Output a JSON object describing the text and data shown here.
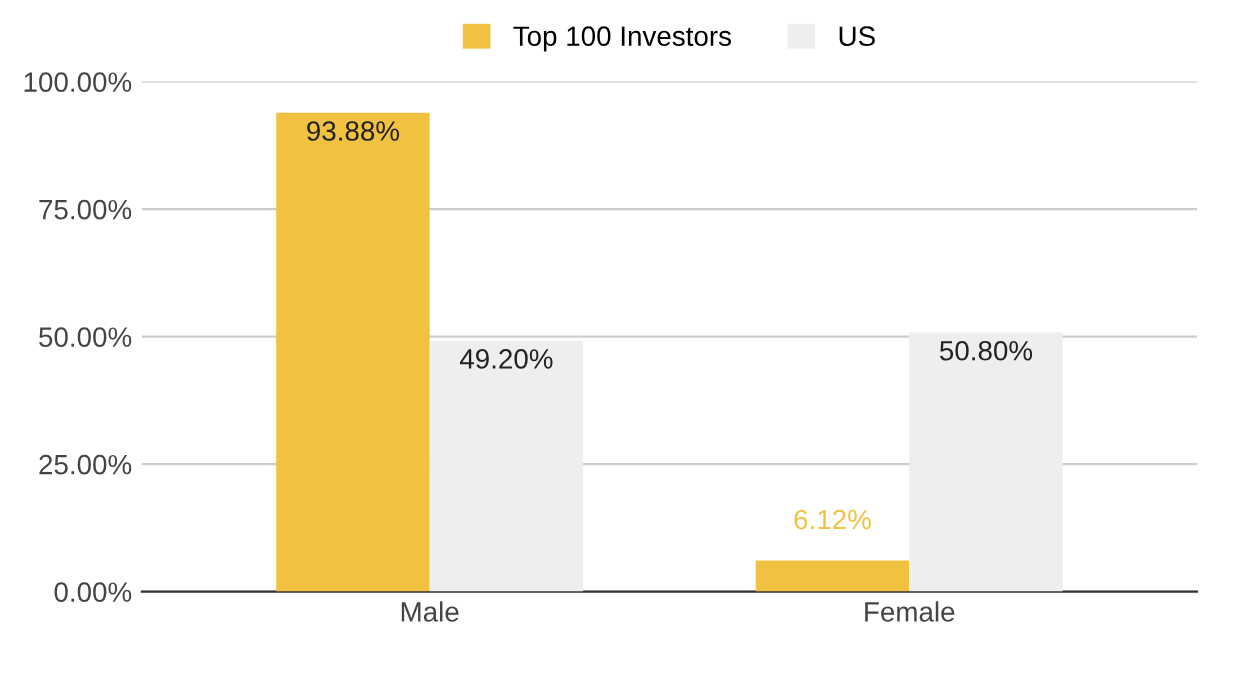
{
  "chart_data": {
    "type": "bar",
    "categories": [
      "Male",
      "Female"
    ],
    "series": [
      {
        "name": "Top 100 Investors",
        "color": "#f1c142",
        "values": [
          93.88,
          6.12
        ],
        "value_labels": [
          "93.88%",
          "6.12%"
        ]
      },
      {
        "name": "US",
        "color": "#eeeeee",
        "values": [
          49.2,
          50.8
        ],
        "value_labels": [
          "49.20%",
          "50.80%"
        ]
      }
    ],
    "ylim": [
      0,
      100
    ],
    "yticks": [
      {
        "value": 0,
        "label": "0.00%"
      },
      {
        "value": 25,
        "label": "25.00%"
      },
      {
        "value": 50,
        "label": "50.00%"
      },
      {
        "value": 75,
        "label": "75.00%"
      },
      {
        "value": 100,
        "label": "100.00%"
      }
    ],
    "grid": "y",
    "legend": "top"
  }
}
